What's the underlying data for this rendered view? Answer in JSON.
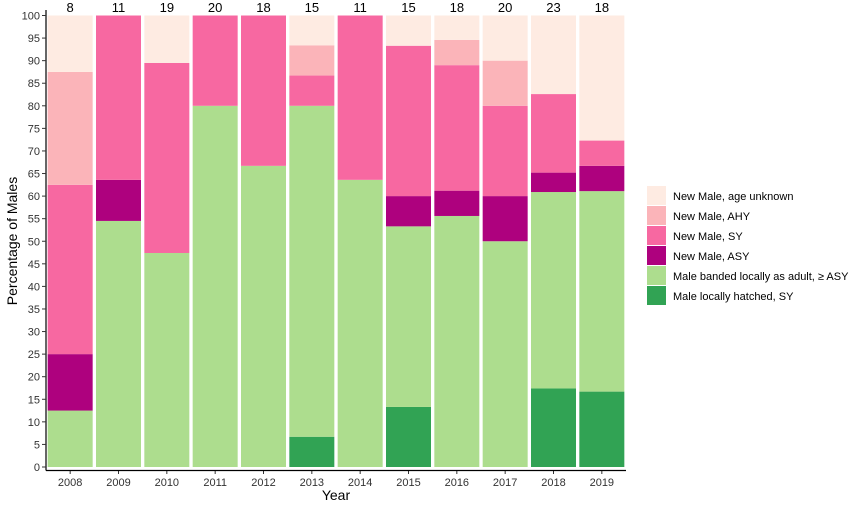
{
  "chart_data": {
    "type": "bar",
    "stacked": true,
    "xlabel": "Year",
    "ylabel": "Percentage of Males",
    "ylim": [
      0,
      100
    ],
    "yticks": [
      0,
      5,
      10,
      15,
      20,
      25,
      30,
      35,
      40,
      45,
      50,
      55,
      60,
      65,
      70,
      75,
      80,
      85,
      90,
      95,
      100
    ],
    "categories": [
      "2008",
      "2009",
      "2010",
      "2011",
      "2012",
      "2013",
      "2014",
      "2015",
      "2016",
      "2017",
      "2018",
      "2019"
    ],
    "counts": [
      "8",
      "11",
      "19",
      "20",
      "18",
      "15",
      "11",
      "15",
      "18",
      "20",
      "23",
      "18"
    ],
    "legend_position": "right",
    "grid": false,
    "series": [
      {
        "name": "Male locally hatched, SY",
        "color": "#31a354",
        "values": [
          0,
          0,
          0,
          0,
          0,
          6.7,
          0,
          13.3,
          0,
          0,
          17.4,
          16.7
        ]
      },
      {
        "name": "Male banded locally as adult, ≥ ASY",
        "color": "#addd8e",
        "values": [
          12.5,
          54.5,
          47.4,
          80,
          66.7,
          73.3,
          63.6,
          40,
          55.6,
          50,
          43.5,
          44.4
        ]
      },
      {
        "name": "New Male, ASY",
        "color": "#ae017e",
        "values": [
          12.5,
          9.1,
          0,
          0,
          0,
          0,
          0,
          6.7,
          5.6,
          10,
          4.3,
          5.6
        ]
      },
      {
        "name": "New Male, SY",
        "color": "#f768a1",
        "values": [
          37.5,
          36.4,
          42.1,
          20,
          33.3,
          6.7,
          36.4,
          33.3,
          27.8,
          20,
          17.4,
          5.6
        ]
      },
      {
        "name": "New Male, AHY",
        "color": "#fbb4b9",
        "values": [
          25,
          0,
          0,
          0,
          0,
          6.7,
          0,
          0,
          5.6,
          10,
          0,
          0
        ]
      },
      {
        "name": "New Male, age unknown",
        "color": "#feebe2",
        "values": [
          12.5,
          0,
          10.5,
          0,
          0,
          6.6,
          0,
          6.7,
          5.4,
          10,
          17.4,
          27.7
        ]
      }
    ],
    "legend_order": [
      5,
      4,
      3,
      2,
      1,
      0
    ]
  }
}
